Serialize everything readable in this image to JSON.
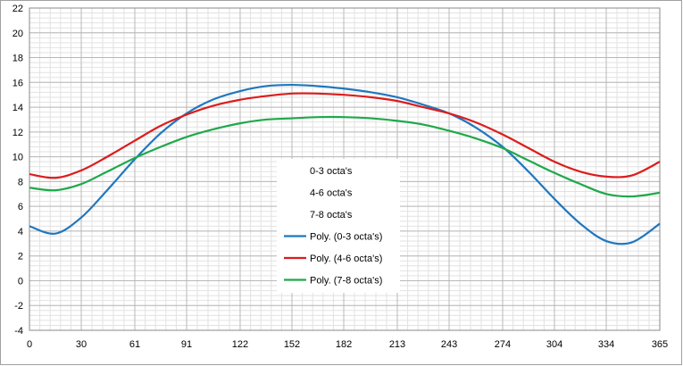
{
  "chart_data": {
    "type": "line",
    "title": "",
    "xlabel": "",
    "ylabel": "",
    "xlim": [
      0,
      365
    ],
    "ylim": [
      -4,
      22
    ],
    "x_ticks": [
      0,
      30,
      61,
      91,
      122,
      152,
      182,
      213,
      243,
      274,
      304,
      334,
      365
    ],
    "y_ticks": [
      -4,
      -2,
      0,
      2,
      4,
      6,
      8,
      10,
      12,
      14,
      16,
      18,
      20,
      22
    ],
    "grid": "on",
    "legend_position": "center",
    "legend_entries": [
      "0-3 octa's",
      "4-6 octa's",
      "7-8 octa's",
      "Poly. (0-3 octa's)",
      "Poly. (4-6 octa's)",
      "Poly. (7-8 octa's)"
    ],
    "series": [
      {
        "name": "Poly. (0-3 octa's)",
        "color": "#1f77bf",
        "x": [
          0,
          15,
          30,
          45,
          61,
          76,
          91,
          106,
          122,
          137,
          152,
          167,
          182,
          198,
          213,
          228,
          243,
          258,
          274,
          289,
          304,
          319,
          334,
          349,
          365
        ],
        "y": [
          4.4,
          3.8,
          5.1,
          7.3,
          9.8,
          11.9,
          13.5,
          14.6,
          15.3,
          15.7,
          15.8,
          15.7,
          15.5,
          15.2,
          14.8,
          14.2,
          13.5,
          12.4,
          10.8,
          8.8,
          6.6,
          4.6,
          3.2,
          3.1,
          4.6
        ]
      },
      {
        "name": "Poly. (4-6 octa's)",
        "color": "#dd1c1c",
        "x": [
          0,
          15,
          30,
          45,
          61,
          76,
          91,
          106,
          122,
          137,
          152,
          167,
          182,
          198,
          213,
          228,
          243,
          258,
          274,
          289,
          304,
          319,
          334,
          349,
          365
        ],
        "y": [
          8.6,
          8.3,
          8.9,
          10.0,
          11.3,
          12.5,
          13.4,
          14.1,
          14.6,
          14.9,
          15.1,
          15.1,
          15.0,
          14.8,
          14.5,
          14.0,
          13.5,
          12.8,
          11.8,
          10.7,
          9.6,
          8.8,
          8.4,
          8.5,
          9.6
        ]
      },
      {
        "name": "Poly. (7-8 octa's)",
        "color": "#1fa84a",
        "x": [
          0,
          15,
          30,
          45,
          61,
          76,
          91,
          106,
          122,
          137,
          152,
          167,
          182,
          198,
          213,
          228,
          243,
          258,
          274,
          289,
          304,
          319,
          334,
          349,
          365
        ],
        "y": [
          7.5,
          7.3,
          7.8,
          8.8,
          9.9,
          10.8,
          11.6,
          12.2,
          12.7,
          13.0,
          13.1,
          13.2,
          13.2,
          13.1,
          12.9,
          12.6,
          12.1,
          11.5,
          10.7,
          9.7,
          8.7,
          7.8,
          7.0,
          6.8,
          7.1
        ]
      }
    ]
  }
}
